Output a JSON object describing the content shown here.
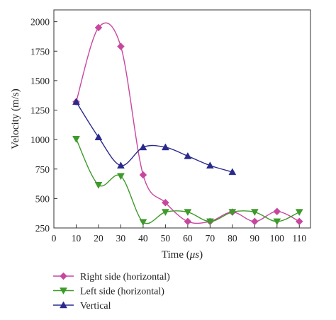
{
  "chart_data": {
    "type": "line",
    "xlabel": "Time (μs)",
    "xlabel_parts": [
      "Time (",
      "μs",
      ")"
    ],
    "ylabel": "Velocity (m/s)",
    "xlim": [
      0,
      115
    ],
    "ylim": [
      250,
      2100
    ],
    "x_ticks": [
      0,
      10,
      20,
      30,
      40,
      50,
      60,
      70,
      80,
      90,
      100,
      110
    ],
    "y_ticks": [
      250,
      500,
      750,
      1000,
      1250,
      1500,
      1750,
      2000
    ],
    "legend_position": "bottom-left, below plot",
    "grid": false,
    "series": [
      {
        "name": "Right side (horizontal)",
        "color": "#c8479e",
        "marker": "diamond",
        "x": [
          10,
          20,
          30,
          40,
          50,
          60,
          70,
          80,
          90,
          100,
          110
        ],
        "y": [
          1320,
          1950,
          1790,
          700,
          465,
          305,
          305,
          385,
          305,
          390,
          305
        ]
      },
      {
        "name": "Left side (horizontal)",
        "color": "#3e9a2a",
        "marker": "triangle-down",
        "x": [
          10,
          20,
          30,
          40,
          50,
          60,
          70,
          80,
          90,
          100,
          110
        ],
        "y": [
          1005,
          615,
          690,
          300,
          385,
          385,
          305,
          385,
          385,
          305,
          385
        ]
      },
      {
        "name": "Vertical",
        "color": "#2a2a8c",
        "marker": "triangle-up",
        "x": [
          10,
          20,
          30,
          40,
          50,
          60,
          70,
          80
        ],
        "y": [
          1320,
          1020,
          780,
          935,
          935,
          860,
          780,
          725
        ]
      }
    ]
  }
}
